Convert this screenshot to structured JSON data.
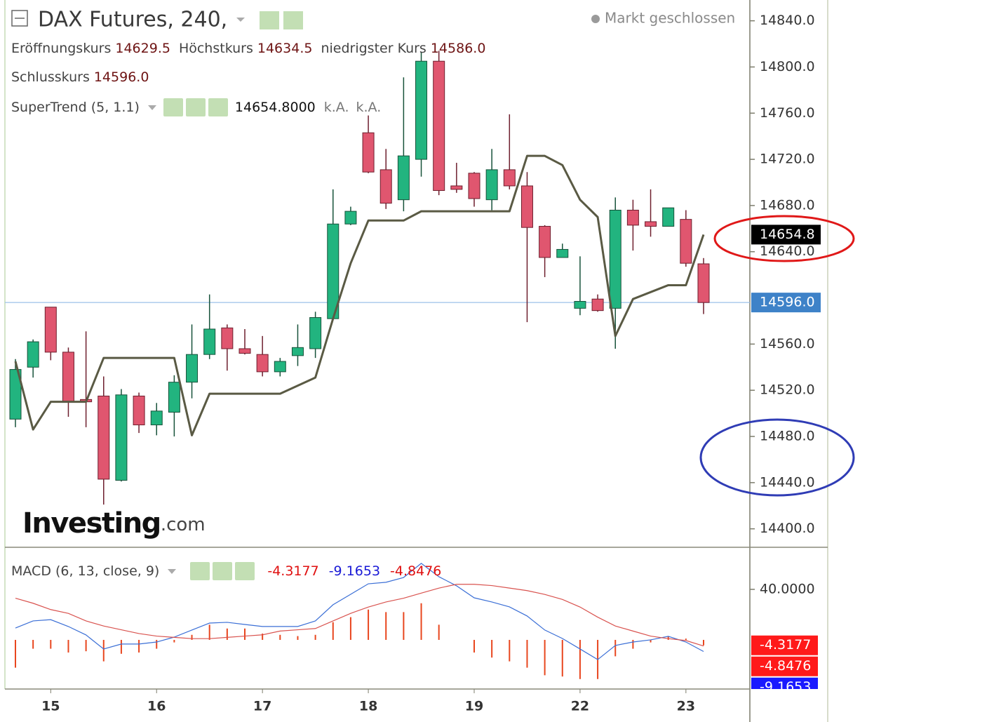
{
  "chart_data": [
    {
      "type": "candlestick",
      "title": "DAX Futures, 240,",
      "status": "Markt geschlossen",
      "ohlc_legend": [
        {
          "name": "Eröffnungskurs",
          "value": "14629.5"
        },
        {
          "name": "Höchstkurs",
          "value": "14634.5"
        },
        {
          "name": "niedrigster Kurs",
          "value": "14586.0"
        },
        {
          "name": "Schlusskurs",
          "value": "14596.0"
        }
      ],
      "indicator_value": "14654.8000",
      "indicator_extra": [
        "k.A.",
        "k.A."
      ],
      "watermark": "Investing",
      "watermark_suffix": ".com",
      "categories": [
        null,
        null,
        "15",
        null,
        null,
        null,
        null,
        null,
        "16",
        null,
        null,
        null,
        null,
        null,
        "17",
        null,
        null,
        null,
        null,
        null,
        "18",
        null,
        null,
        null,
        null,
        null,
        "19",
        null,
        null,
        null,
        null,
        null,
        "22",
        null,
        null,
        null,
        null,
        null,
        "23",
        null
      ],
      "open": [
        14495,
        14540,
        14592,
        14553,
        14512,
        14515,
        14442,
        14515,
        14490,
        14501,
        14527,
        14551,
        14574,
        14556,
        14551,
        14536,
        14550,
        14556,
        14582,
        14664,
        14743,
        14711,
        14685,
        14720,
        14805,
        14697,
        14708,
        14685,
        14711,
        14697,
        14662,
        14635,
        14591,
        14599,
        14591,
        14676,
        14666,
        14662,
        14668,
        14629.5
      ],
      "high": [
        14547,
        14564,
        14592,
        14557,
        14571,
        14532,
        14521,
        14518,
        14509,
        14533,
        14577,
        14603,
        14577,
        14573,
        14567,
        14548,
        14577,
        14588,
        14694,
        14679,
        14758,
        14729,
        14791,
        14813,
        14814,
        14717,
        14709,
        14729,
        14759,
        14709,
        14663,
        14647,
        14636,
        14603,
        14687,
        14685,
        14694,
        14678,
        14676,
        14634.5
      ],
      "low": [
        14488,
        14531,
        14546,
        14497,
        14488,
        14421,
        14441,
        14483,
        14481,
        14480,
        14513,
        14547,
        14537,
        14551,
        14532,
        14532,
        14541,
        14548,
        14582,
        14663,
        14708,
        14677,
        14675,
        14705,
        14689,
        14691,
        14679,
        14676,
        14694,
        14579,
        14618,
        14635,
        14585,
        14588,
        14556,
        14641,
        14653,
        14662,
        14627,
        14586
      ],
      "close": [
        14538,
        14562,
        14553,
        14510,
        14510,
        14443,
        14516,
        14490,
        14502,
        14527,
        14551,
        14573,
        14556,
        14552,
        14536,
        14545,
        14557,
        14583,
        14664,
        14675,
        14709,
        14682,
        14723,
        14805,
        14693,
        14694,
        14686,
        14711,
        14697,
        14661,
        14635,
        14642,
        14597,
        14589,
        14676,
        14663,
        14662,
        14678,
        14630,
        14596
      ],
      "up_color": "#22b47f",
      "down_color": "#e0566f",
      "series": [
        {
          "name": "SuperTrend (5, 1.1)",
          "color": "#5a5a44",
          "values": [
            14545,
            14486,
            14510,
            14510,
            14510,
            14548,
            14548,
            14548,
            14548,
            14548,
            14481,
            14517,
            14517,
            14517,
            14517,
            14517,
            14524,
            14531,
            14582,
            14630,
            14667,
            14667,
            14667,
            14675,
            14675,
            14675,
            14675,
            14675,
            14675,
            14723,
            14723,
            14715,
            14685,
            14670,
            14567,
            14599,
            14605,
            14611,
            14611,
            14654.8
          ]
        }
      ],
      "last_price": {
        "value": 14596,
        "label": "14596.0"
      },
      "ylim": [
        14384,
        14858
      ],
      "yticks": [
        {
          "value": 14840,
          "label": "14840.0"
        },
        {
          "value": 14800,
          "label": "14800.0"
        },
        {
          "value": 14760,
          "label": "14760.0"
        },
        {
          "value": 14720,
          "label": "14720.0"
        },
        {
          "value": 14680,
          "label": "14680.0"
        },
        {
          "value": 14640,
          "label": "14640.0"
        },
        {
          "value": 14560,
          "label": "14560.0"
        },
        {
          "value": 14520,
          "label": "14520.0"
        },
        {
          "value": 14480,
          "label": "14480.0"
        },
        {
          "value": 14440,
          "label": "14440.0"
        },
        {
          "value": 14400,
          "label": "14400.0"
        }
      ]
    },
    {
      "type": "macd",
      "title": "MACD (6, 13, close, 9)",
      "series": [
        {
          "kind": "histogram",
          "color": "#e8461e",
          "values": [
            -22,
            -7,
            -7,
            -10,
            -9,
            -17,
            -11,
            -10,
            -7,
            -2,
            4,
            12,
            9,
            9,
            5,
            4,
            3,
            4,
            14,
            18,
            24,
            22,
            22,
            29,
            12,
            0,
            -10,
            -14,
            -17,
            -22,
            -28,
            -29,
            -31,
            -31,
            -13,
            -7,
            -2,
            3,
            1,
            -4.3177
          ]
        },
        {
          "kind": "line",
          "color": "#3b6fd6",
          "values": [
            9.4,
            15,
            16,
            10.6,
            3.9,
            -7.2,
            -3.3,
            -3.3,
            -1.7,
            2.2,
            7.8,
            13.3,
            13.9,
            12.2,
            10.6,
            10.6,
            10.6,
            15,
            27.8,
            36.1,
            44.4,
            45.6,
            49.4,
            60.6,
            50,
            42.8,
            33.3,
            30,
            26.1,
            18.9,
            7.8,
            1.1,
            -7.2,
            -15.6,
            -4.4,
            -1.7,
            0,
            2.8,
            -1.7,
            -9.1653
          ]
        },
        {
          "kind": "line",
          "color": "#d9534f",
          "values": [
            33,
            29,
            24,
            21,
            15,
            11,
            8,
            5,
            3,
            2,
            1,
            1,
            2,
            3,
            4,
            7,
            8,
            9,
            15,
            21,
            26,
            30,
            33,
            37,
            41,
            44,
            44,
            43,
            41,
            39,
            36,
            32,
            26,
            18,
            11,
            7,
            3,
            1,
            -0.5,
            -4.8476
          ]
        }
      ],
      "legend_order": [
        0,
        1,
        2
      ],
      "axis_box_colors": [
        "#ff1a1a",
        "#ff1a1a",
        "#1a1aff"
      ],
      "axis_box_order": [
        0,
        2,
        1
      ],
      "ylim": [
        -38.9,
        73.3
      ],
      "yticks": [
        {
          "value": 40,
          "label": "40.0000"
        }
      ]
    }
  ]
}
